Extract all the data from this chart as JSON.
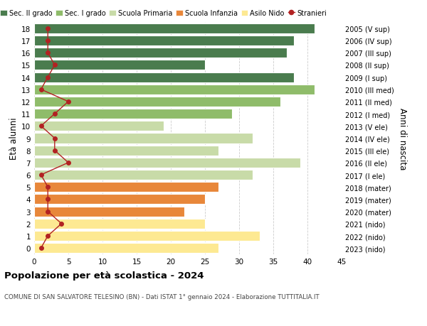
{
  "ages": [
    0,
    1,
    2,
    3,
    4,
    5,
    6,
    7,
    8,
    9,
    10,
    11,
    12,
    13,
    14,
    15,
    16,
    17,
    18
  ],
  "bar_values": [
    27,
    33,
    25,
    22,
    25,
    27,
    32,
    39,
    27,
    32,
    19,
    29,
    36,
    41,
    38,
    25,
    37,
    38,
    41
  ],
  "bar_colors": [
    "#fde992",
    "#fde992",
    "#fde992",
    "#e8873a",
    "#e8873a",
    "#e8873a",
    "#c8dba8",
    "#c8dba8",
    "#c8dba8",
    "#c8dba8",
    "#c8dba8",
    "#8fbc6a",
    "#8fbc6a",
    "#8fbc6a",
    "#4a7c4e",
    "#4a7c4e",
    "#4a7c4e",
    "#4a7c4e",
    "#4a7c4e"
  ],
  "stranieri_values": [
    1,
    2,
    4,
    2,
    2,
    2,
    1,
    5,
    3,
    3,
    1,
    3,
    5,
    1,
    2,
    3,
    2,
    2,
    2
  ],
  "right_labels": [
    "2023 (nido)",
    "2022 (nido)",
    "2021 (nido)",
    "2020 (mater)",
    "2019 (mater)",
    "2018 (mater)",
    "2017 (I ele)",
    "2016 (II ele)",
    "2015 (III ele)",
    "2014 (IV ele)",
    "2013 (V ele)",
    "2012 (I med)",
    "2011 (II med)",
    "2010 (III med)",
    "2009 (I sup)",
    "2008 (II sup)",
    "2007 (III sup)",
    "2006 (IV sup)",
    "2005 (V sup)"
  ],
  "legend_labels": [
    "Sec. II grado",
    "Sec. I grado",
    "Scuola Primaria",
    "Scuola Infanzia",
    "Asilo Nido",
    "Stranieri"
  ],
  "legend_colors": [
    "#4a7c4e",
    "#8fbc6a",
    "#c8dba8",
    "#e8873a",
    "#fde992",
    "#b22222"
  ],
  "xlabel_values": [
    0,
    5,
    10,
    15,
    20,
    25,
    30,
    35,
    40,
    45
  ],
  "title": "Popolazione per età scolastica - 2024",
  "subtitle": "COMUNE DI SAN SALVATORE TELESINO (BN) - Dati ISTAT 1° gennaio 2024 - Elaborazione TUTTITALIA.IT",
  "ylabel_left": "Età alunni",
  "ylabel_right": "Anni di nascita",
  "bg_color": "#ffffff",
  "plot_bg_color": "#ffffff",
  "grid_color": "#cccccc",
  "stranieri_color": "#b22222",
  "bar_height": 0.82
}
